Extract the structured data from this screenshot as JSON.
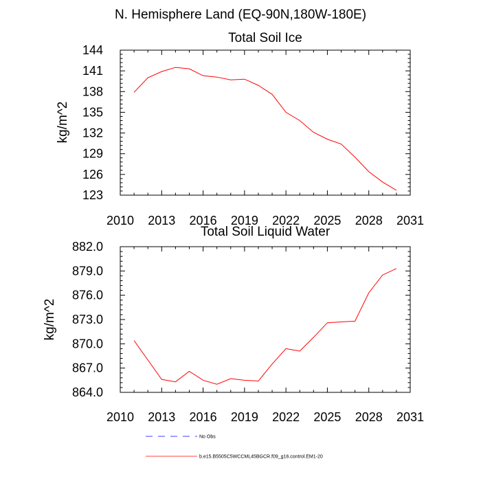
{
  "figure_title": "N. Hemisphere Land (EQ-90N,180W-180E)",
  "chart_data": [
    {
      "type": "line",
      "title": "Total Soil Ice",
      "ylabel": "kg/m^2",
      "xlabel": "",
      "xlim": [
        2010,
        2031
      ],
      "ylim": [
        123,
        144
      ],
      "x_ticks": [
        2010,
        2013,
        2016,
        2019,
        2022,
        2025,
        2028,
        2031
      ],
      "x_tick_labels": [
        "2010",
        "2013",
        "2016",
        "2019",
        "2022",
        "2025",
        "2028",
        "2031"
      ],
      "y_ticks": [
        123,
        126,
        129,
        132,
        135,
        138,
        141,
        144
      ],
      "y_tick_labels": [
        "123",
        "126",
        "129",
        "132",
        "135",
        "138",
        "141",
        "144"
      ],
      "series": [
        {
          "name": "b.e15.B5505C5WCCML45BGCR.f09_g16.control.EM1-20",
          "color": "#ff0000",
          "x": [
            2011,
            2012,
            2013,
            2014,
            2015,
            2016,
            2017,
            2018,
            2019,
            2020,
            2021,
            2022,
            2023,
            2024,
            2025,
            2026,
            2027,
            2028,
            2029,
            2030
          ],
          "values": [
            137.9,
            140.0,
            140.9,
            141.5,
            141.3,
            140.3,
            140.1,
            139.7,
            139.8,
            138.9,
            137.6,
            135.0,
            133.8,
            132.1,
            131.1,
            130.4,
            128.5,
            126.4,
            124.9,
            123.7
          ]
        }
      ]
    },
    {
      "type": "line",
      "title": "Total Soil Liquid Water",
      "ylabel": "kg/m^2",
      "xlabel": "",
      "xlim": [
        2010,
        2031
      ],
      "ylim": [
        864.0,
        882.0
      ],
      "x_ticks": [
        2010,
        2013,
        2016,
        2019,
        2022,
        2025,
        2028,
        2031
      ],
      "x_tick_labels": [
        "2010",
        "2013",
        "2016",
        "2019",
        "2022",
        "2025",
        "2028",
        "2031"
      ],
      "y_ticks": [
        864,
        867,
        870,
        873,
        876,
        879,
        882
      ],
      "y_tick_labels": [
        "864.0",
        "867.0",
        "870.0",
        "873.0",
        "876.0",
        "879.0",
        "882.0"
      ],
      "series": [
        {
          "name": "b.e15.B5505C5WCCML45BGCR.f09_g16.control.EM1-20",
          "color": "#ff0000",
          "x": [
            2011,
            2012,
            2013,
            2014,
            2015,
            2016,
            2017,
            2018,
            2019,
            2020,
            2021,
            2022,
            2023,
            2024,
            2025,
            2026,
            2027,
            2028,
            2029,
            2030
          ],
          "values": [
            870.4,
            868.0,
            865.6,
            865.3,
            866.6,
            865.5,
            865.0,
            865.7,
            865.5,
            865.4,
            867.5,
            869.4,
            869.1,
            870.8,
            872.6,
            872.7,
            872.8,
            876.3,
            878.5,
            879.3
          ]
        }
      ]
    }
  ],
  "legend": [
    {
      "label": "No Obs",
      "style": "dashed",
      "color": "#0000ff"
    },
    {
      "label": "b.e15.B5505C5WCCML45BGCR.f09_g16.control.EM1-20",
      "style": "solid",
      "color": "#ff0000"
    }
  ]
}
